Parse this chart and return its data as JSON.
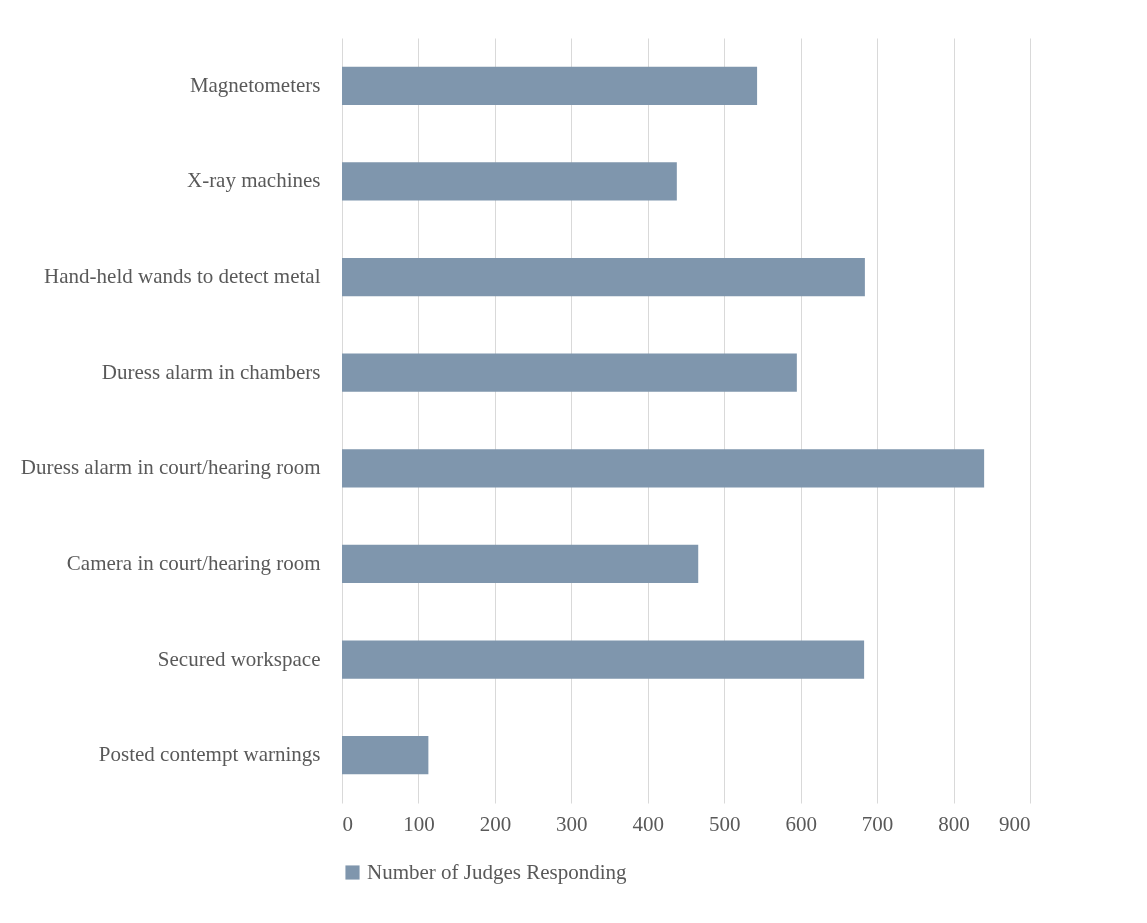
{
  "chart_data": {
    "type": "bar",
    "orientation": "horizontal",
    "categories": [
      "Magnetometers",
      "X-ray machines",
      "Hand-held wands to detect metal",
      "Duress alarm in chambers",
      "Duress alarm in court/hearing room",
      "Camera in court/hearing room",
      "Secured workspace",
      "Posted contempt warnings"
    ],
    "series": [
      {
        "name": "Number of Judges Responding",
        "color": "#7f96ad",
        "values": [
          543,
          438,
          684,
          595,
          840,
          466,
          683,
          113
        ]
      }
    ],
    "xlim": [
      0,
      900
    ],
    "xticks": [
      0,
      100,
      200,
      300,
      400,
      500,
      600,
      700,
      800,
      900
    ],
    "grid": "x",
    "legend": "bottom"
  }
}
